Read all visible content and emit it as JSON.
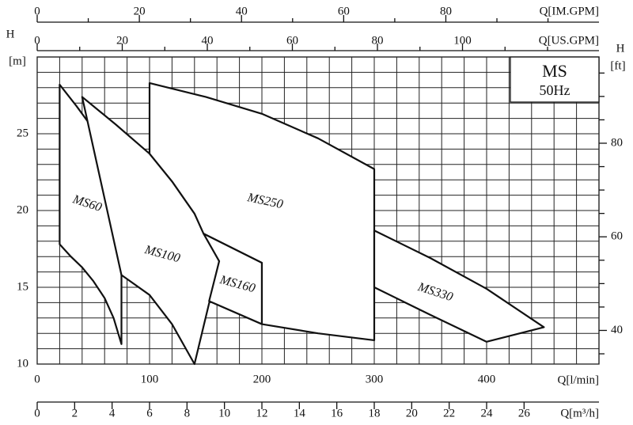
{
  "chart_data": {
    "type": "pump-range",
    "badge": {
      "model": "MS",
      "frequency": "50Hz"
    },
    "x": {
      "label": "Q[l/min]",
      "lim": [
        0,
        500
      ],
      "ticks": [
        0,
        100,
        200,
        300,
        400
      ],
      "grid": [
        20,
        40,
        60,
        80,
        120,
        140,
        160,
        180,
        220,
        240,
        260,
        280,
        320,
        340,
        360,
        380,
        420,
        440,
        460,
        480
      ]
    },
    "x_m3h": {
      "label": "Q[m³/h]",
      "lim": [
        0,
        30
      ],
      "ticks": [
        0,
        2,
        4,
        6,
        8,
        10,
        12,
        14,
        16,
        18,
        20,
        22,
        24,
        26
      ]
    },
    "x_usgpm": {
      "label": "Q[US.GPM]",
      "lim": [
        0,
        132.09
      ],
      "ticks": [
        0,
        20,
        40,
        60,
        80,
        100
      ],
      "minor": [
        10,
        30,
        50,
        70,
        90,
        110,
        120
      ]
    },
    "x_imgpm": {
      "label": "Q[IM.GPM]",
      "lim": [
        0,
        109.98
      ],
      "ticks": [
        0,
        20,
        40,
        60,
        80
      ],
      "minor": [
        10,
        30,
        50,
        70,
        90,
        100
      ]
    },
    "y": {
      "label": "H",
      "unit": "[m]",
      "lim": [
        10,
        30
      ],
      "ticks": [
        10,
        15,
        20,
        25
      ],
      "grid": [
        11,
        12,
        13,
        14,
        16,
        17,
        18,
        19,
        21,
        22,
        23,
        24,
        26,
        27,
        28,
        29
      ]
    },
    "y_ft": {
      "label": "H",
      "unit": "[ft]",
      "lim": [
        32.81,
        98.43
      ],
      "ticks": [
        40,
        60,
        80
      ],
      "minor": [
        35,
        45,
        50,
        55,
        65,
        70,
        75,
        85,
        90,
        95
      ]
    },
    "series": [
      {
        "name": "MS60",
        "x": [
          20,
          35,
          50,
          62,
          75,
          75,
          68,
          60,
          50,
          40,
          30,
          20
        ],
        "values": [
          28.2,
          26.8,
          25.3,
          23.8,
          22.0,
          11.3,
          13.0,
          14.3,
          15.4,
          16.3,
          17.0,
          17.8
        ]
      },
      {
        "name": "MS100",
        "x": [
          40,
          70,
          100,
          120,
          140,
          162,
          140,
          120,
          100,
          75
        ],
        "values": [
          27.4,
          25.6,
          23.7,
          21.9,
          19.8,
          16.7,
          10.0,
          12.6,
          14.5,
          15.8
        ]
      },
      {
        "name": "MS160",
        "x": [
          148,
          200,
          200,
          153,
          162
        ],
        "values": [
          18.5,
          16.6,
          12.6,
          14.1,
          16.7
        ]
      },
      {
        "name": "MS250",
        "x": [
          100,
          150,
          200,
          250,
          300,
          300,
          250,
          200,
          200,
          148,
          140,
          120,
          100
        ],
        "values": [
          28.3,
          27.4,
          26.3,
          24.7,
          22.7,
          11.55,
          12.0,
          12.6,
          16.6,
          18.5,
          19.8,
          21.9,
          23.7
        ]
      },
      {
        "name": "MS330",
        "x": [
          300,
          350,
          400,
          451,
          400,
          350,
          300
        ],
        "values": [
          18.7,
          16.9,
          14.9,
          12.4,
          11.45,
          13.2,
          15.0
        ]
      }
    ]
  }
}
